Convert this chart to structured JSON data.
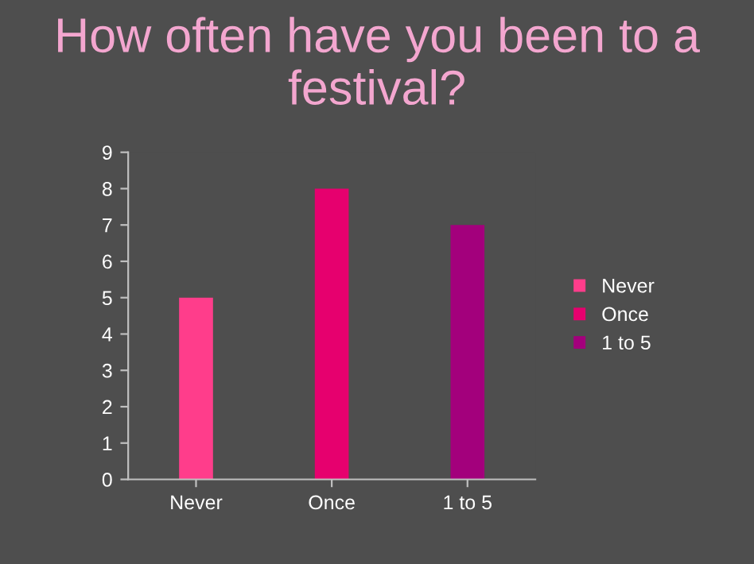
{
  "chart_data": {
    "type": "bar",
    "title": "How often have you been to a festival?",
    "categories": [
      "Never",
      "Once",
      "1 to 5"
    ],
    "series": [
      {
        "name": "Never",
        "color": "#ff3d8b",
        "values": [
          5,
          null,
          null
        ]
      },
      {
        "name": "Once",
        "color": "#e6006e",
        "values": [
          null,
          8,
          null
        ]
      },
      {
        "name": "1 to 5",
        "color": "#a3007c",
        "values": [
          null,
          null,
          7
        ]
      }
    ],
    "ylim": [
      0,
      9
    ],
    "yticks": [
      0,
      1,
      2,
      3,
      4,
      5,
      6,
      7,
      8,
      9
    ],
    "grid": false,
    "legend": "right"
  }
}
